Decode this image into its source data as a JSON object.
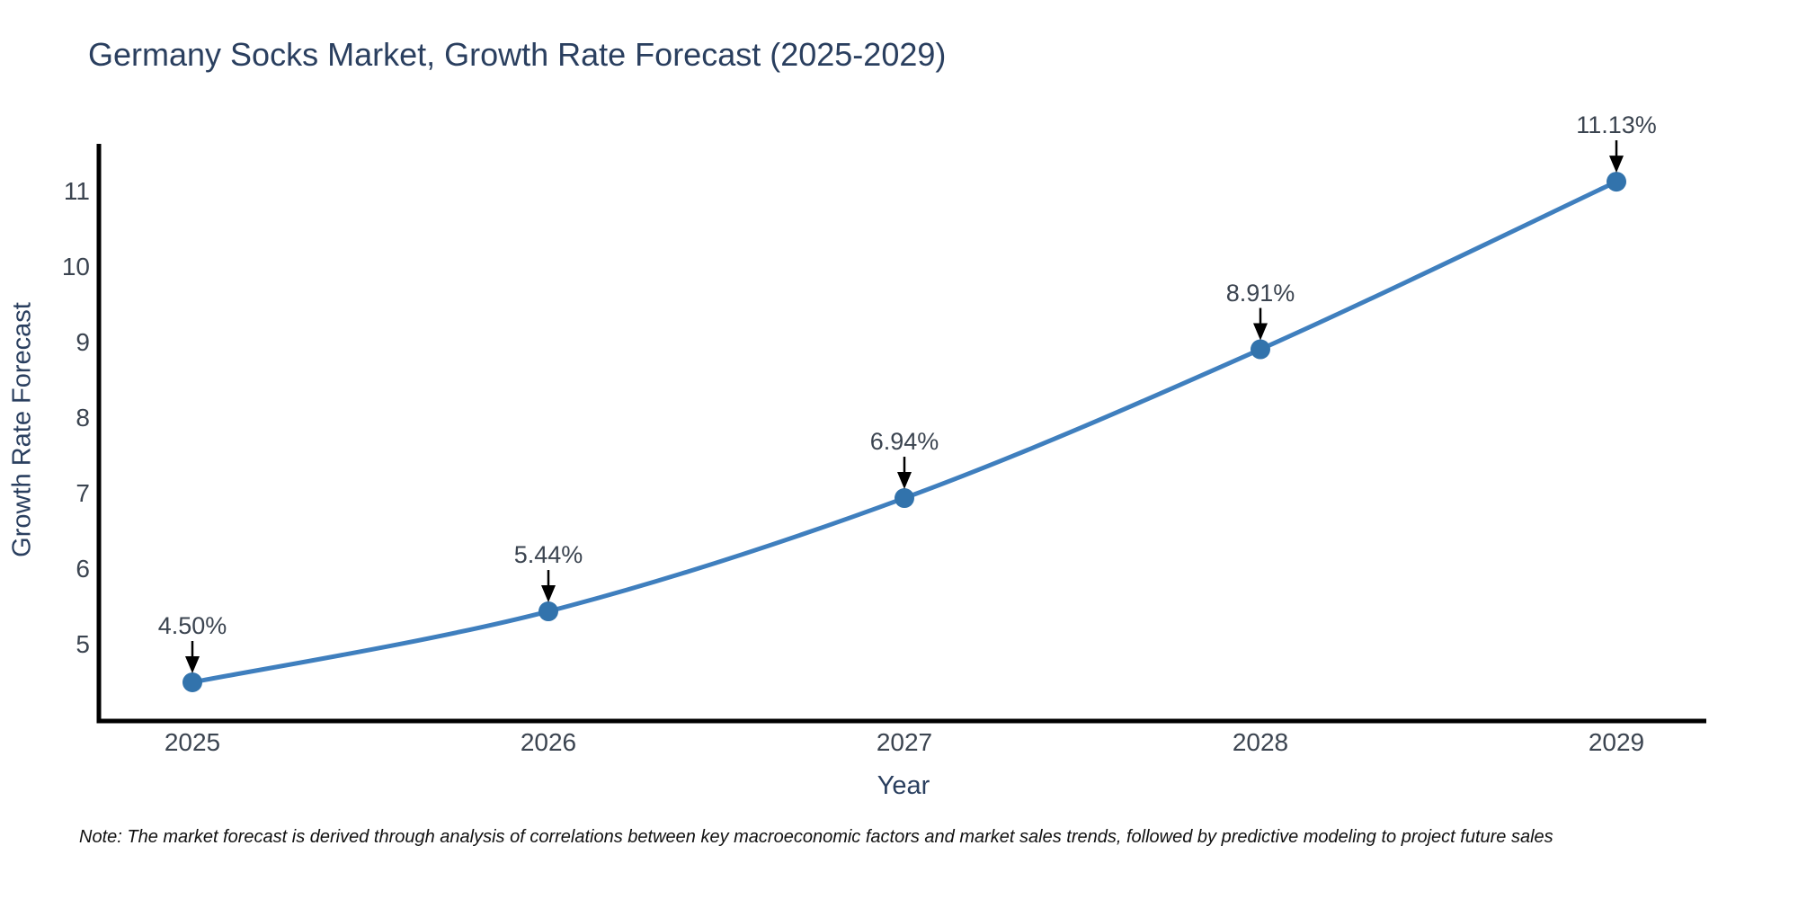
{
  "title": {
    "text": "Germany Socks Market, Growth Rate Forecast (2025-2029)"
  },
  "note": {
    "text": "Note: The market forecast is derived through analysis of correlations between key macroeconomic factors and market sales trends, followed by predictive modeling to project future sales"
  },
  "chart_data": {
    "type": "line",
    "title": "Germany Socks Market, Growth Rate Forecast (2025-2029)",
    "xlabel": "Year",
    "ylabel": "Growth Rate Forecast",
    "categories": [
      "2025",
      "2026",
      "2027",
      "2028",
      "2029"
    ],
    "series": [
      {
        "name": "Growth Rate Forecast",
        "values": [
          4.5,
          5.44,
          6.94,
          8.91,
          11.13
        ]
      }
    ],
    "point_labels": [
      "4.50%",
      "5.44%",
      "6.94%",
      "8.91%",
      "11.13%"
    ],
    "yticks": [
      5,
      6,
      7,
      8,
      9,
      10,
      11
    ],
    "ylim": [
      4.0,
      11.65
    ],
    "grid": false,
    "legend_position": "none",
    "annotation_style": "value label with black arrow pointing down at each marker",
    "colors": {
      "line": "#3f7fbe",
      "marker": "#3273ac",
      "axis": "#000000",
      "arrow": "#000000",
      "title_text": "#2a3f5f",
      "tick_text": "#3b4450",
      "note_text": "#111111"
    }
  }
}
